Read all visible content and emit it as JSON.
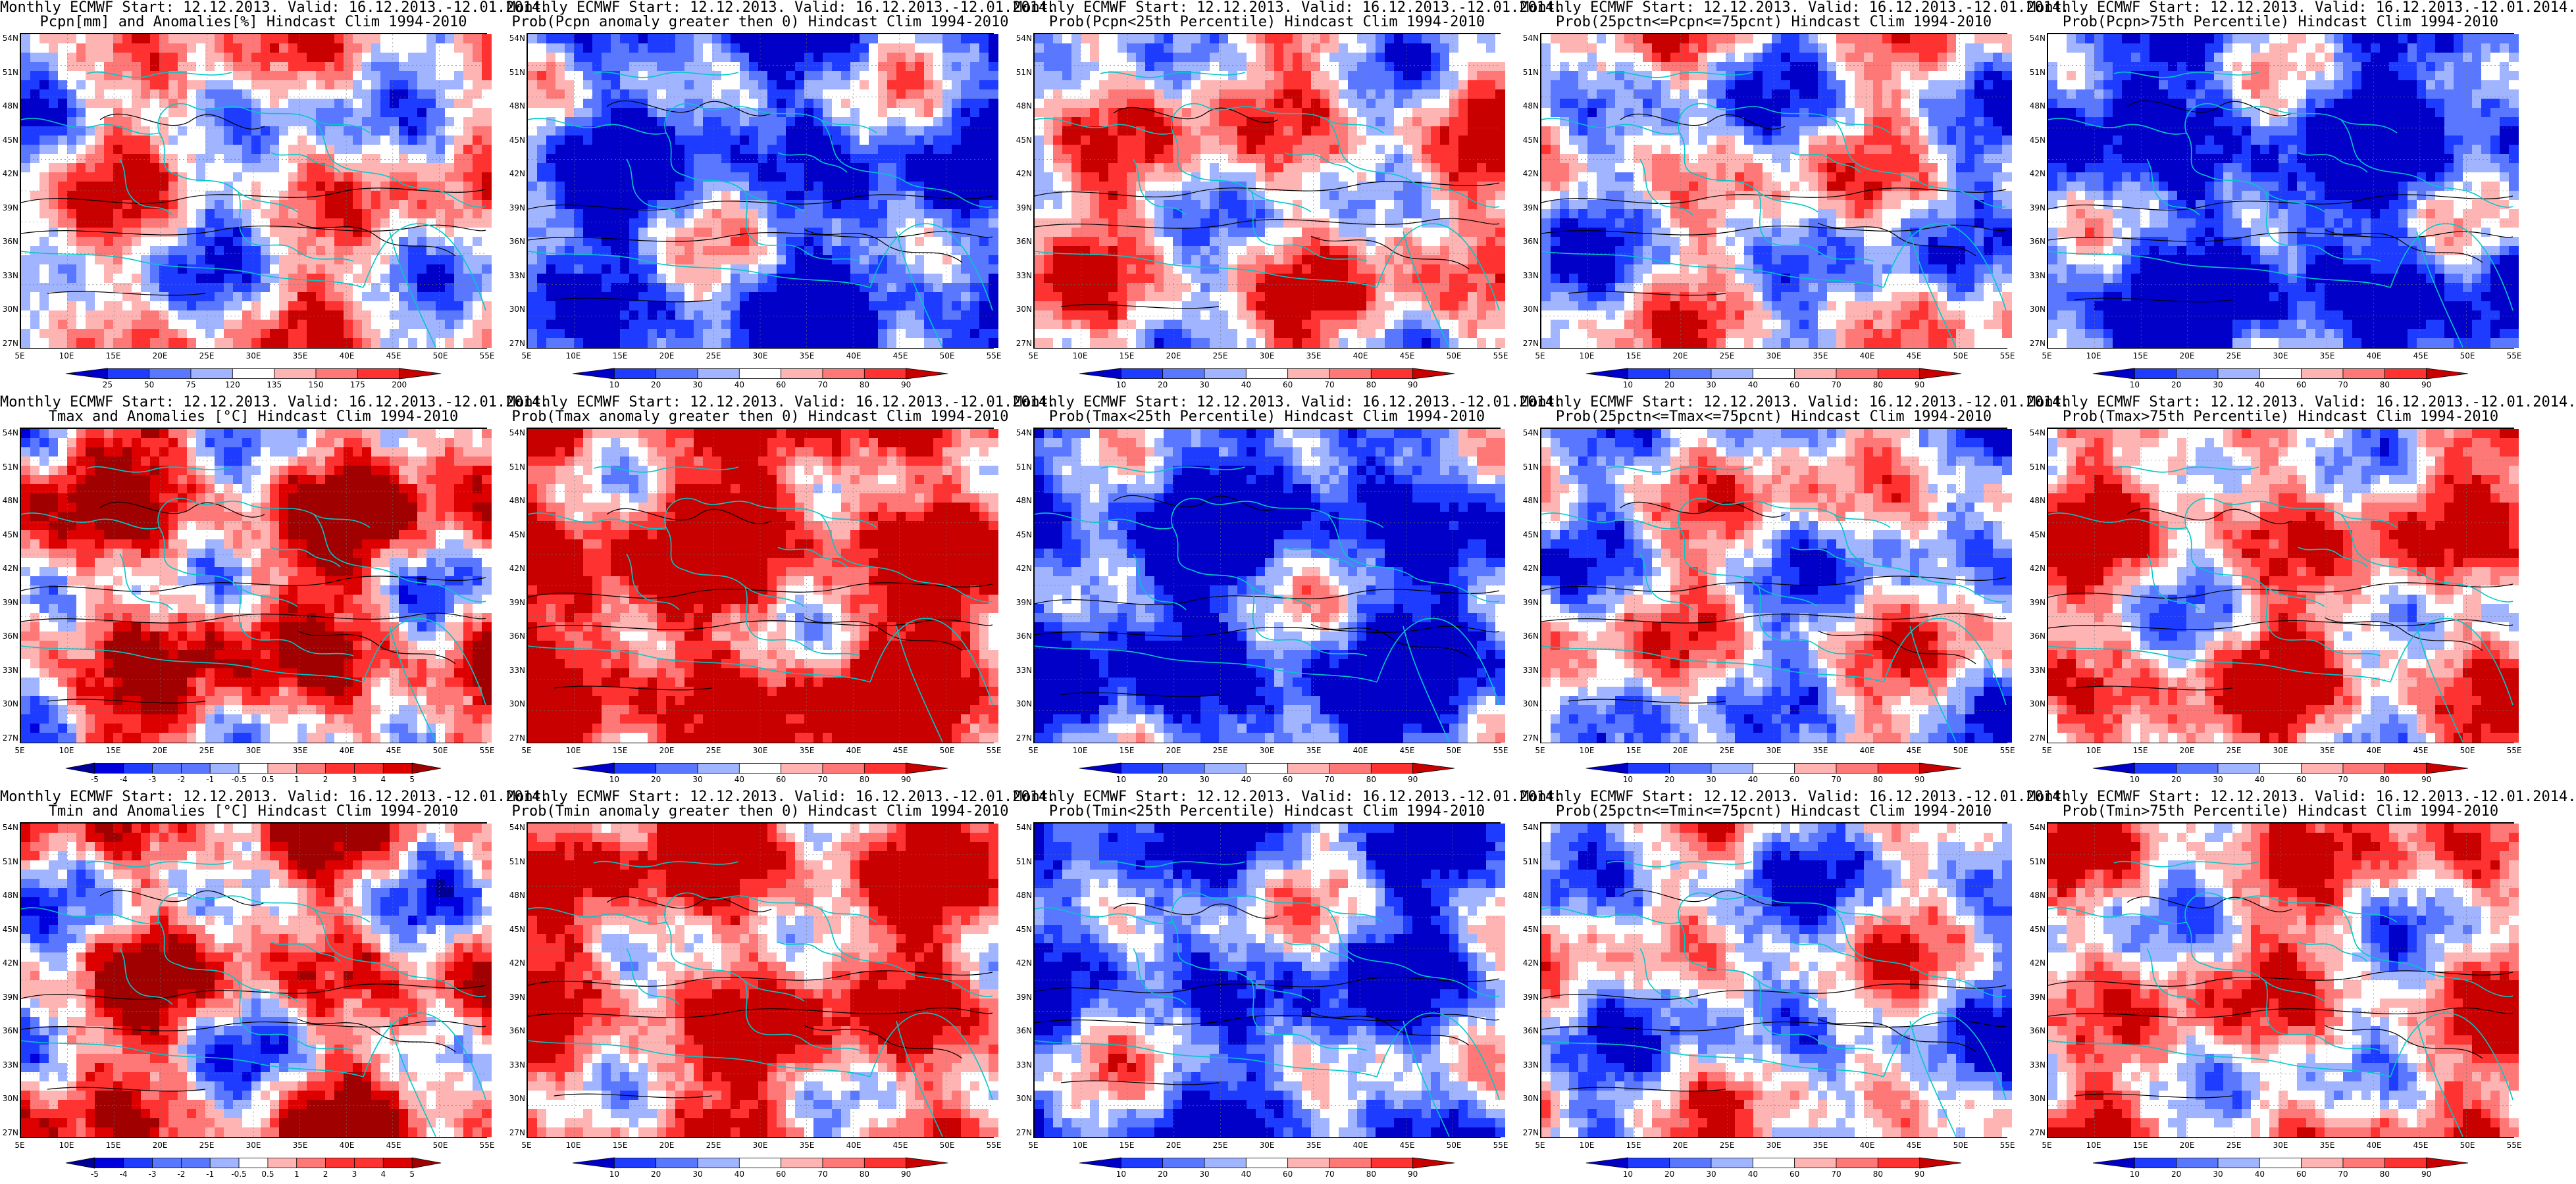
{
  "panels": [
    {
      "id": "p1",
      "row": 0,
      "col": 0,
      "title1": "Monthly ECMWF Start: 12.12.2013. Valid: 16.12.2013.-12.01.2014.",
      "title2": "Pcpn[mm] and Anomalies[%] Hindcast Clim 1994-2010",
      "palette": "pcp",
      "bias": 0.1,
      "seed": 11,
      "colorbar": [
        "25",
        "50",
        "75",
        "120",
        "135",
        "150",
        "175",
        "200"
      ]
    },
    {
      "id": "p2",
      "row": 0,
      "col": 1,
      "title1": "Monthly ECMWF Start: 12.12.2013. Valid: 16.12.2013.-12.01.2014.",
      "title2": "Prob(Pcpn anomaly greater then 0) Hindcast Clim 1994-2010",
      "palette": "prob",
      "bias": -0.55,
      "seed": 21,
      "colorbar": [
        "10",
        "20",
        "30",
        "40",
        "60",
        "70",
        "80",
        "90"
      ]
    },
    {
      "id": "p3",
      "row": 0,
      "col": 2,
      "title1": "Monthly ECMWF Start: 12.12.2013. Valid: 16.12.2013.-12.01.2014.",
      "title2": "Prob(Pcpn<25th Percentile) Hindcast Clim 1994-2010",
      "palette": "prob",
      "bias": 0.2,
      "seed": 31,
      "colorbar": [
        "10",
        "20",
        "30",
        "40",
        "60",
        "70",
        "80",
        "90"
      ]
    },
    {
      "id": "p4",
      "row": 0,
      "col": 3,
      "title1": "Monthly ECMWF Start: 12.12.2013. Valid: 16.12.2013.-12.01.2014.",
      "title2": "Prob(25pctn<=Pcpn<=75pcnt) Hindcast Clim 1994-2010",
      "palette": "prob",
      "bias": -0.05,
      "seed": 41,
      "colorbar": [
        "10",
        "20",
        "30",
        "40",
        "60",
        "70",
        "80",
        "90"
      ]
    },
    {
      "id": "p5",
      "row": 0,
      "col": 4,
      "title1": "Monthly ECMWF Start: 12.12.2013. Valid: 16.12.2013.-12.01.2014.",
      "title2": "Prob(Pcpn>75th Percentile) Hindcast Clim 1994-2010",
      "palette": "prob",
      "bias": -0.7,
      "seed": 51,
      "colorbar": [
        "10",
        "20",
        "30",
        "40",
        "60",
        "70",
        "80",
        "90"
      ]
    },
    {
      "id": "p6",
      "row": 1,
      "col": 0,
      "title1": "Monthly ECMWF Start: 12.12.2013. Valid: 16.12.2013.-12.01.2014.",
      "title2": "Tmax and Anomalies [°C] Hindcast Clim 1994-2010",
      "palette": "anom",
      "bias": 0.45,
      "seed": 61,
      "colorbar": [
        "-5",
        "-4",
        "-3",
        "-2",
        "-1",
        "-0.5",
        "0.5",
        "1",
        "2",
        "3",
        "4",
        "5"
      ]
    },
    {
      "id": "p7",
      "row": 1,
      "col": 1,
      "title1": "Monthly ECMWF Start: 12.12.2013. Valid: 16.12.2013.-12.01.2014.",
      "title2": "Prob(Tmax anomaly greater then 0) Hindcast Clim 1994-2010",
      "palette": "prob",
      "bias": 0.75,
      "seed": 71,
      "colorbar": [
        "10",
        "20",
        "30",
        "40",
        "60",
        "70",
        "80",
        "90"
      ]
    },
    {
      "id": "p8",
      "row": 1,
      "col": 2,
      "title1": "Monthly ECMWF Start: 12.12.2013. Valid: 16.12.2013.-12.01.2014.",
      "title2": "Prob(Tmax<25th Percentile) Hindcast Clim 1994-2010",
      "palette": "prob",
      "bias": -0.7,
      "seed": 81,
      "colorbar": [
        "10",
        "20",
        "30",
        "40",
        "60",
        "70",
        "80",
        "90"
      ]
    },
    {
      "id": "p9",
      "row": 1,
      "col": 3,
      "title1": "Monthly ECMWF Start: 12.12.2013. Valid: 16.12.2013.-12.01.2014.",
      "title2": "Prob(25pctn<=Tmax<=75pcnt) Hindcast Clim 1994-2010",
      "palette": "prob",
      "bias": 0.0,
      "seed": 91,
      "colorbar": [
        "10",
        "20",
        "30",
        "40",
        "60",
        "70",
        "80",
        "90"
      ]
    },
    {
      "id": "p10",
      "row": 1,
      "col": 4,
      "title1": "Monthly ECMWF Start: 12.12.2013. Valid: 16.12.2013.-12.01.2014.",
      "title2": "Prob(Tmax>75th Percentile) Hindcast Clim 1994-2010",
      "palette": "prob",
      "bias": 0.35,
      "seed": 101,
      "colorbar": [
        "10",
        "20",
        "30",
        "40",
        "60",
        "70",
        "80",
        "90"
      ]
    },
    {
      "id": "p11",
      "row": 2,
      "col": 0,
      "title1": "Monthly ECMWF Start: 12.12.2013. Valid: 16.12.2013.-12.01.2014.",
      "title2": "Tmin and Anomalies [°C] Hindcast Clim 1994-2010",
      "palette": "anom",
      "bias": 0.3,
      "seed": 111,
      "colorbar": [
        "-5",
        "-4",
        "-3",
        "-2",
        "-1",
        "-0.5",
        "0.5",
        "1",
        "2",
        "3",
        "4",
        "5"
      ]
    },
    {
      "id": "p12",
      "row": 2,
      "col": 1,
      "title1": "Monthly ECMWF Start: 12.12.2013. Valid: 16.12.2013.-12.01.2014.",
      "title2": "Prob(Tmin anomaly greater then 0) Hindcast Clim 1994-2010",
      "palette": "prob",
      "bias": 0.55,
      "seed": 121,
      "colorbar": [
        "10",
        "20",
        "30",
        "40",
        "60",
        "70",
        "80",
        "90"
      ]
    },
    {
      "id": "p13",
      "row": 2,
      "col": 2,
      "title1": "Monthly ECMWF Start: 12.12.2013. Valid: 16.12.2013.-12.01.2014.",
      "title2": "Prob(Tmin<25th Percentile) Hindcast Clim 1994-2010",
      "palette": "prob",
      "bias": -0.45,
      "seed": 131,
      "colorbar": [
        "10",
        "20",
        "30",
        "40",
        "60",
        "70",
        "80",
        "90"
      ]
    },
    {
      "id": "p14",
      "row": 2,
      "col": 3,
      "title1": "Monthly ECMWF Start: 12.12.2013. Valid: 16.12.2013.-12.01.2014.",
      "title2": "Prob(25pctn<=Tmin<=75pcnt) Hindcast Clim 1994-2010",
      "palette": "prob",
      "bias": -0.1,
      "seed": 141,
      "colorbar": [
        "10",
        "20",
        "30",
        "40",
        "60",
        "70",
        "80",
        "90"
      ]
    },
    {
      "id": "p15",
      "row": 2,
      "col": 4,
      "title1": "Monthly ECMWF Start: 12.12.2013. Valid: 16.12.2013.-12.01.2014.",
      "title2": "Prob(Tmin>75th Percentile) Hindcast Clim 1994-2010",
      "palette": "prob",
      "bias": 0.25,
      "seed": 151,
      "colorbar": [
        "10",
        "20",
        "30",
        "40",
        "60",
        "70",
        "80",
        "90"
      ]
    }
  ],
  "lat_labels": [
    "54N",
    "51N",
    "48N",
    "45N",
    "42N",
    "39N",
    "36N",
    "33N",
    "30N",
    "27N"
  ],
  "lon_labels": [
    "5E",
    "10E",
    "15E",
    "20E",
    "25E",
    "30E",
    "35E",
    "40E",
    "45E",
    "50E",
    "55E"
  ],
  "colors": {
    "prob": [
      "#0000c8",
      "#1e3cff",
      "#5a78ff",
      "#a0b4ff",
      "#ffffff",
      "#ffb4b4",
      "#ff7878",
      "#ff3232",
      "#c80000"
    ],
    "pcp": [
      "#0000c8",
      "#1e3cff",
      "#5a78ff",
      "#a0b4ff",
      "#ffffff",
      "#ffb4b4",
      "#ff7878",
      "#ff3232",
      "#c80000"
    ],
    "anom": [
      "#000096",
      "#0000dc",
      "#1e3cff",
      "#5a78ff",
      "#a0b4ff",
      "#ffffff",
      "#ffb4b4",
      "#ff7878",
      "#ff3232",
      "#dc0000",
      "#a00000"
    ],
    "coast": "#00c8c8",
    "contour": "#000000"
  }
}
